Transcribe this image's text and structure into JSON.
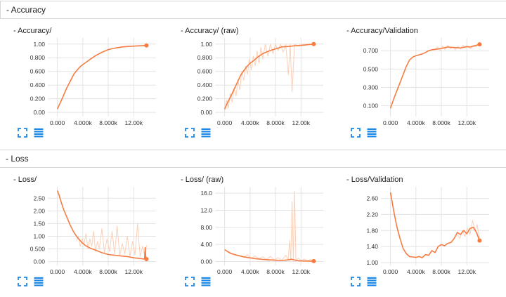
{
  "colors": {
    "smoothed": "#f57c42",
    "raw": "#fbd0b8",
    "grid": "#e3e3e3",
    "icon": "#1e88e5"
  },
  "sections": [
    {
      "title": "- Accuracy"
    },
    {
      "title": "- Loss"
    }
  ],
  "cards": [
    {
      "title": "- Accuracy/",
      "chart_data": {
        "type": "line",
        "x_ticks": [
          "0.000",
          "4.000k",
          "8.000k",
          "12.00k"
        ],
        "y_ticks": [
          "0.00",
          "0.200",
          "0.400",
          "0.600",
          "0.800",
          "1.00"
        ],
        "xlim": [
          -1500,
          15500
        ],
        "ylim": [
          -0.06,
          1.09
        ],
        "series": [
          {
            "role": "smoothed",
            "x": [
              0,
              400,
              800,
              1200,
              1600,
              2000,
              2600,
              3200,
              3600,
              4000,
              4600,
              5200,
              6000,
              7000,
              8000,
              9000,
              10000,
              11000,
              12000,
              13000,
              14000
            ],
            "y": [
              0.05,
              0.13,
              0.21,
              0.3,
              0.38,
              0.45,
              0.56,
              0.63,
              0.67,
              0.7,
              0.74,
              0.78,
              0.83,
              0.88,
              0.92,
              0.94,
              0.955,
              0.965,
              0.97,
              0.975,
              0.98
            ]
          }
        ],
        "end_marker": [
          14000,
          0.98
        ]
      }
    },
    {
      "title": "- Accuracy/ (raw)",
      "chart_data": {
        "type": "line",
        "x_ticks": [
          "0.000",
          "4.000k",
          "8.000k",
          "12.00k"
        ],
        "y_ticks": [
          "0.00",
          "0.200",
          "0.400",
          "0.600",
          "0.800",
          "1.00"
        ],
        "xlim": [
          -1500,
          15500
        ],
        "ylim": [
          -0.06,
          1.09
        ],
        "series": [
          {
            "role": "raw",
            "x": [
              0,
              300,
              600,
              900,
              1200,
              1500,
              1800,
              2100,
              2400,
              2700,
              3000,
              3300,
              3600,
              3900,
              4200,
              4500,
              4800,
              5100,
              5400,
              5700,
              6000,
              6400,
              6800,
              7200,
              7600,
              8000,
              8400,
              8800,
              9200,
              9600,
              10000,
              10300,
              10600,
              11000,
              11500,
              12000,
              12500,
              13000,
              13500,
              14000
            ],
            "y": [
              0.02,
              0.18,
              0.06,
              0.28,
              0.15,
              0.36,
              0.24,
              0.48,
              0.33,
              0.6,
              0.47,
              0.68,
              0.56,
              0.78,
              0.62,
              0.82,
              0.68,
              0.9,
              0.72,
              0.95,
              0.78,
              1.0,
              0.82,
              1.0,
              0.86,
              1.0,
              0.9,
              1.0,
              0.88,
              1.0,
              0.55,
              1.0,
              0.3,
              1.0,
              0.97,
              1.0,
              0.99,
              1.0,
              0.99,
              1.0
            ]
          },
          {
            "role": "smoothed",
            "x": [
              0,
              500,
              1000,
              1500,
              2000,
              2500,
              3000,
              3500,
              4000,
              4600,
              5200,
              6000,
              7000,
              8000,
              9000,
              10000,
              10500,
              11000,
              12000,
              13000,
              14000
            ],
            "y": [
              0.05,
              0.15,
              0.24,
              0.34,
              0.44,
              0.54,
              0.61,
              0.67,
              0.72,
              0.76,
              0.81,
              0.86,
              0.9,
              0.93,
              0.96,
              0.965,
              0.97,
              0.975,
              0.98,
              0.99,
              1.0
            ]
          }
        ],
        "end_marker": [
          14000,
          1.0
        ]
      }
    },
    {
      "title": "- Accuracy/Validation",
      "chart_data": {
        "type": "line",
        "x_ticks": [
          "0.000",
          "4.000k",
          "8.000k",
          "12.00k"
        ],
        "y_ticks": [
          "0.100",
          "0.300",
          "0.500",
          "0.700"
        ],
        "xlim": [
          -1500,
          15500
        ],
        "ylim": [
          -0.02,
          0.84
        ],
        "series": [
          {
            "role": "raw",
            "x": [
              7000,
              7400,
              7800,
              8200,
              8600,
              9000,
              9400,
              9800,
              10200,
              10600,
              11000,
              11400,
              11800,
              12200,
              12600,
              13000,
              13400,
              13800
            ],
            "y": [
              0.71,
              0.74,
              0.7,
              0.75,
              0.71,
              0.76,
              0.72,
              0.74,
              0.71,
              0.75,
              0.72,
              0.76,
              0.73,
              0.75,
              0.72,
              0.76,
              0.74,
              0.77
            ]
          },
          {
            "role": "smoothed",
            "x": [
              0,
              500,
              1000,
              1500,
              2000,
              2500,
              3000,
              3500,
              4000,
              4500,
              5000,
              5500,
              6000,
              6500,
              7000,
              8000,
              9000,
              10000,
              11000,
              12000,
              12500,
              13000,
              14000
            ],
            "y": [
              0.07,
              0.17,
              0.26,
              0.35,
              0.44,
              0.53,
              0.6,
              0.63,
              0.645,
              0.655,
              0.665,
              0.68,
              0.7,
              0.71,
              0.715,
              0.725,
              0.74,
              0.735,
              0.73,
              0.745,
              0.74,
              0.75,
              0.77
            ]
          }
        ],
        "end_marker": [
          14000,
          0.77
        ]
      }
    },
    {
      "title": "- Loss/",
      "chart_data": {
        "type": "line",
        "x_ticks": [
          "0.000",
          "4.000k",
          "8.000k",
          "12.00k"
        ],
        "y_ticks": [
          "0.00",
          "0.500",
          "1.00",
          "1.50",
          "2.00",
          "2.50"
        ],
        "xlim": [
          -1500,
          15500
        ],
        "ylim": [
          -0.15,
          2.95
        ],
        "series": [
          {
            "role": "raw",
            "x": [
              3000,
              3300,
              3600,
              3900,
              4200,
              4500,
              4800,
              5100,
              5400,
              5700,
              6000,
              6300,
              6600,
              7000,
              7400,
              7800,
              8200,
              8600,
              9000,
              9400,
              9800,
              10200,
              10600,
              11000,
              11400,
              11800,
              12200,
              12600,
              13000,
              13400,
              13800,
              14000
            ],
            "y": [
              0.8,
              1.0,
              0.6,
              0.9,
              0.7,
              1.1,
              0.5,
              0.9,
              0.6,
              1.2,
              0.4,
              0.8,
              0.5,
              1.3,
              0.35,
              0.9,
              0.4,
              1.2,
              0.3,
              1.4,
              0.25,
              0.7,
              0.3,
              1.0,
              0.2,
              0.8,
              0.25,
              1.5,
              0.2,
              0.6,
              0.15,
              0.65
            ]
          },
          {
            "role": "smoothed",
            "x": [
              0,
              300,
              600,
              1000,
              1500,
              2000,
              2500,
              3000,
              3500,
              4000,
              4500,
              5000,
              5500,
              6000,
              6500,
              7000,
              8000,
              9000,
              10000,
              11000,
              12000,
              13000,
              13700,
              13800,
              13900,
              14000
            ],
            "y": [
              2.8,
              2.6,
              2.35,
              2.05,
              1.75,
              1.45,
              1.2,
              1.0,
              0.85,
              0.72,
              0.62,
              0.55,
              0.5,
              0.45,
              0.4,
              0.35,
              0.28,
              0.25,
              0.22,
              0.2,
              0.15,
              0.12,
              0.1,
              0.55,
              0.15,
              0.1
            ]
          }
        ],
        "end_marker": [
          14000,
          0.1
        ]
      }
    },
    {
      "title": "- Loss/ (raw)",
      "chart_data": {
        "type": "line",
        "x_ticks": [
          "0.000",
          "4.000k",
          "8.000k",
          "12.00k"
        ],
        "y_ticks": [
          "0.00",
          "4.00",
          "8.00",
          "12.0",
          "16.0"
        ],
        "xlim": [
          -1500,
          15500
        ],
        "ylim": [
          -0.9,
          17.5
        ],
        "series": [
          {
            "role": "raw",
            "x": [
              0,
              500,
              1000,
              1500,
              2000,
              2500,
              3000,
              3600,
              4200,
              4800,
              5400,
              6000,
              6600,
              7200,
              7800,
              8400,
              9000,
              9600,
              10000,
              10200,
              10400,
              10600,
              10800,
              11000,
              11200,
              11600,
              12000,
              12500,
              13000,
              13500,
              14000
            ],
            "y": [
              2.8,
              2.4,
              2.0,
              1.7,
              1.5,
              1.2,
              1.0,
              1.6,
              0.8,
              1.3,
              0.7,
              1.1,
              0.5,
              1.2,
              0.4,
              0.9,
              0.3,
              1.5,
              0.4,
              5.0,
              0.3,
              14.0,
              0.4,
              16.5,
              0.3,
              0.8,
              0.2,
              0.6,
              0.2,
              0.5,
              0.1
            ]
          },
          {
            "role": "smoothed",
            "x": [
              0,
              500,
              1000,
              2000,
              3000,
              4000,
              5000,
              6000,
              7000,
              8000,
              9000,
              10000,
              10500,
              11000,
              11500,
              12000,
              13000,
              14000
            ],
            "y": [
              2.8,
              2.3,
              1.9,
              1.45,
              1.1,
              0.85,
              0.65,
              0.5,
              0.4,
              0.32,
              0.25,
              0.4,
              0.55,
              0.35,
              0.2,
              0.15,
              0.12,
              0.1
            ]
          }
        ],
        "end_marker": [
          14000,
          0.1
        ]
      }
    },
    {
      "title": "- Loss/Validation",
      "chart_data": {
        "type": "line",
        "x_ticks": [
          "0.000",
          "4.000k",
          "8.000k",
          "12.00k"
        ],
        "y_ticks": [
          "1.00",
          "1.40",
          "1.80",
          "2.20",
          "2.60"
        ],
        "xlim": [
          -1500,
          15500
        ],
        "ylim": [
          0.93,
          2.89
        ],
        "series": [
          {
            "role": "raw",
            "x": [
              10500,
              10900,
              11300,
              11700,
              12100,
              12500,
              12900,
              13300,
              13600,
              14000
            ],
            "y": [
              1.7,
              1.6,
              1.8,
              1.65,
              1.85,
              1.7,
              2.05,
              1.8,
              1.95,
              1.6
            ]
          },
          {
            "role": "smoothed",
            "x": [
              0,
              500,
              1000,
              1500,
              2000,
              2500,
              3000,
              3500,
              4000,
              4500,
              5000,
              5500,
              6000,
              6500,
              7000,
              7500,
              8000,
              8500,
              9000,
              9500,
              10000,
              10500,
              11000,
              11500,
              12000,
              12500,
              13000,
              13500,
              14000
            ],
            "y": [
              2.75,
              2.3,
              1.9,
              1.6,
              1.35,
              1.22,
              1.15,
              1.14,
              1.13,
              1.15,
              1.12,
              1.2,
              1.18,
              1.3,
              1.25,
              1.4,
              1.45,
              1.42,
              1.48,
              1.5,
              1.6,
              1.75,
              1.7,
              1.8,
              1.72,
              1.85,
              1.88,
              1.75,
              1.55
            ]
          }
        ],
        "end_marker": [
          14000,
          1.55
        ]
      }
    }
  ]
}
